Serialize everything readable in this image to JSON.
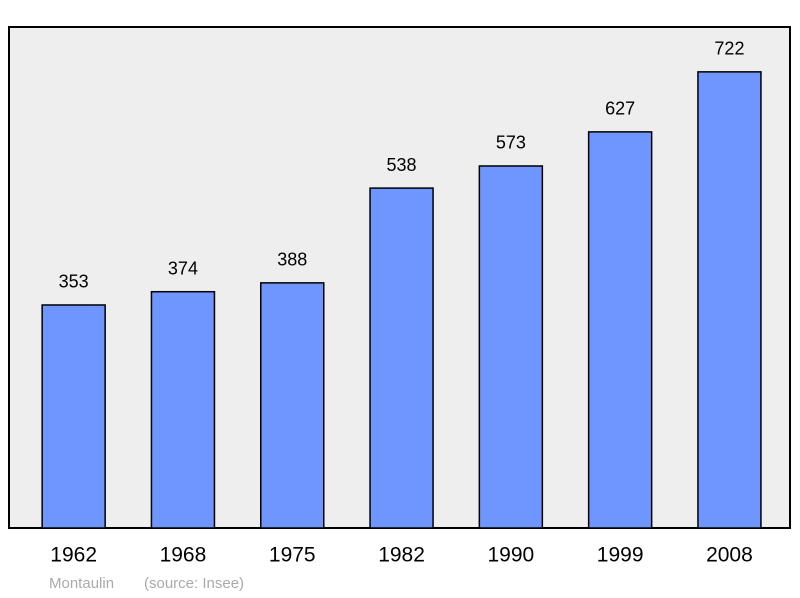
{
  "chart_data": {
    "type": "bar",
    "categories": [
      "1962",
      "1968",
      "1975",
      "1982",
      "1990",
      "1999",
      "2008"
    ],
    "values": [
      353,
      374,
      388,
      538,
      573,
      627,
      722
    ],
    "color": "#6f96ff",
    "ylim": [
      0,
      793
    ],
    "caption": "Montaulin",
    "source": "(source: Insee)"
  }
}
